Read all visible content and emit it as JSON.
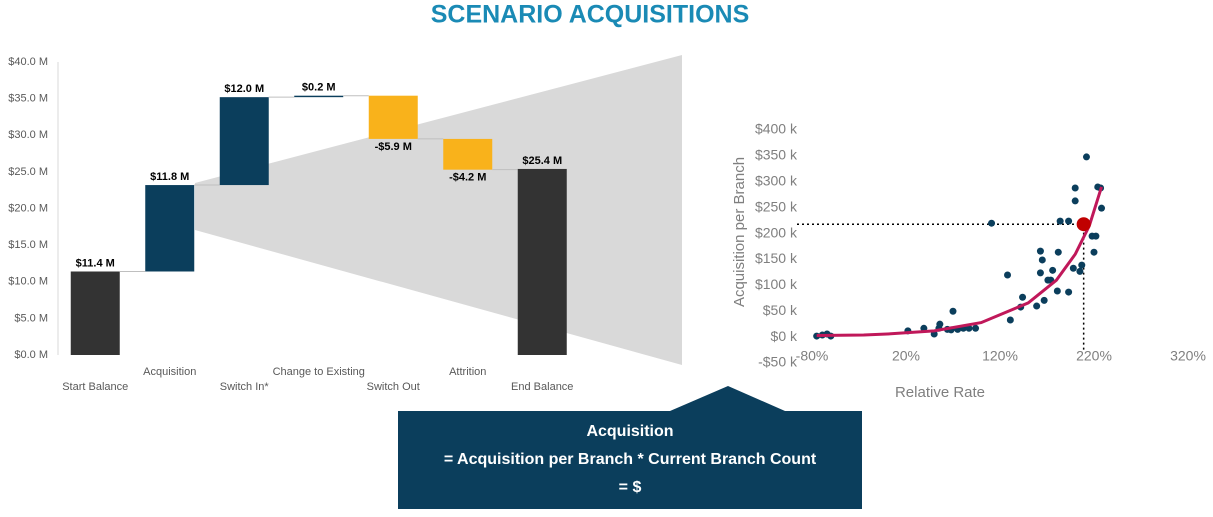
{
  "title": "SCENARIO ACQUISITIONS",
  "callout": {
    "lines": [
      "Acquisition",
      "= Acquisition per Branch * Current Branch Count",
      "= $"
    ]
  },
  "chart_data": [
    {
      "type": "waterfall",
      "categories": [
        "Start Balance",
        "Acquisition",
        "Switch In*",
        "Change to Existing",
        "Switch Out",
        "Attrition",
        "End Balance"
      ],
      "values": [
        11.4,
        11.8,
        12.0,
        0.2,
        -5.9,
        -4.2,
        25.4
      ],
      "value_labels": [
        "$11.4 M",
        "$11.8 M",
        "$12.0 M",
        "$0.2 M",
        "-$5.9 M",
        "-$4.2 M",
        "$25.4 M"
      ],
      "totals": [
        0,
        6
      ],
      "colors": {
        "total": "#333333",
        "increase": "#0b3e5c",
        "decrease": "#f9b21b"
      },
      "ylim": [
        0,
        40
      ],
      "yticks": [
        {
          "value": 0,
          "label": "$0.0 M"
        },
        {
          "value": 5,
          "label": "$5.0 M"
        },
        {
          "value": 10,
          "label": "$10.0 M"
        },
        {
          "value": 15,
          "label": "$15.0 M"
        },
        {
          "value": 20,
          "label": "$20.0 M"
        },
        {
          "value": 25,
          "label": "$25.0 M"
        },
        {
          "value": 30,
          "label": "$30.0 M"
        },
        {
          "value": 35,
          "label": "$35.0 M"
        },
        {
          "value": 40,
          "label": "$40.0 M"
        }
      ]
    },
    {
      "type": "scatter",
      "x_label": "Relative Rate",
      "y_label": "Acquisition per Branch",
      "points": {
        "color": "#0b3e5c",
        "x": [
          -75,
          -69,
          -64,
          -60,
          22,
          39,
          50,
          55,
          56,
          64,
          68,
          70,
          75,
          81,
          87,
          94,
          111,
          128,
          131,
          142,
          144,
          159,
          163,
          165,
          163,
          167,
          171,
          174,
          176,
          181,
          182,
          184,
          193,
          193,
          198,
          200,
          200,
          205,
          207,
          209,
          212,
          218,
          220,
          222,
          224,
          227,
          228
        ],
        "y": [
          2,
          4,
          6,
          2,
          12,
          17,
          6,
          17,
          25,
          15,
          14,
          50,
          15,
          17,
          17,
          17,
          220,
          120,
          33,
          58,
          77,
          60,
          166,
          149,
          124,
          71,
          110,
          110,
          129,
          89,
          164,
          224,
          87,
          224,
          133,
          263,
          288,
          127,
          139,
          216,
          348,
          195,
          164,
          195,
          290,
          288,
          249
        ]
      },
      "trend": {
        "color": "#c0185a",
        "x": [
          -75,
          -25,
          0,
          50,
          100,
          150,
          180,
          200,
          215,
          228
        ],
        "y": [
          3,
          4,
          6,
          12,
          28,
          66,
          110,
          160,
          215,
          290
        ]
      },
      "highlight": {
        "color": "#c00000",
        "x": 209,
        "y": 218
      },
      "xlim": [
        -80,
        320
      ],
      "xticks": [
        {
          "value": -80,
          "label": "-80%"
        },
        {
          "value": 20,
          "label": "20%"
        },
        {
          "value": 120,
          "label": "120%"
        },
        {
          "value": 220,
          "label": "220%"
        },
        {
          "value": 320,
          "label": "320%"
        }
      ],
      "ylim": [
        -50,
        400
      ],
      "yticks": [
        {
          "value": -50,
          "label": "-$50 k"
        },
        {
          "value": 0,
          "label": "$0 k"
        },
        {
          "value": 50,
          "label": "$50 k"
        },
        {
          "value": 100,
          "label": "$100 k"
        },
        {
          "value": 150,
          "label": "$150 k"
        },
        {
          "value": 200,
          "label": "$200 k"
        },
        {
          "value": 250,
          "label": "$250 k"
        },
        {
          "value": 300,
          "label": "$300 k"
        },
        {
          "value": 350,
          "label": "$350 k"
        },
        {
          "value": 400,
          "label": "$400 k"
        }
      ]
    }
  ]
}
